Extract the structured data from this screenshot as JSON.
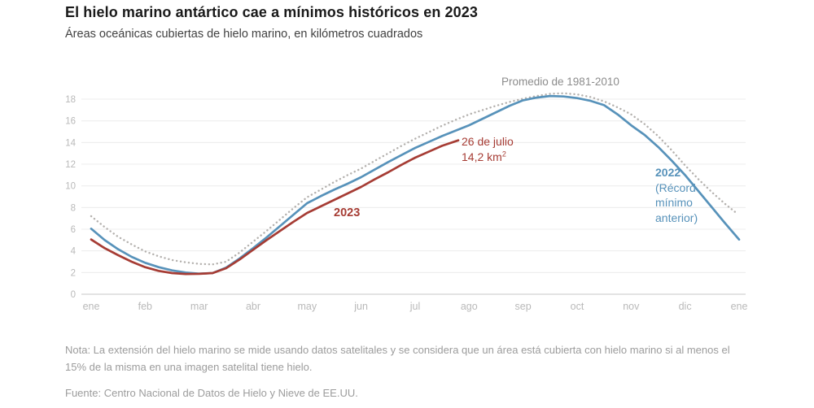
{
  "header": {
    "title": "El hielo marino antártico cae a mínimos históricos en 2023",
    "subtitle": "Áreas oceánicas cubiertas de hielo marino, en kilómetros cuadrados"
  },
  "chart_data": {
    "type": "line",
    "title": "El hielo marino antártico cae a mínimos históricos en 2023",
    "ylabel": "",
    "xlabel": "",
    "x_labels": [
      "ene",
      "feb",
      "mar",
      "abr",
      "may",
      "jun",
      "jul",
      "ago",
      "sep",
      "oct",
      "nov",
      "dic",
      "ene"
    ],
    "y_ticks": [
      0,
      2,
      4,
      6,
      8,
      10,
      12,
      14,
      16,
      18
    ],
    "ylim": [
      0,
      18.6
    ],
    "grid": "horizontal",
    "colors": {
      "average": "#b4b1ae",
      "y2022": "#5792ba",
      "y2023": "#a63c34",
      "gridline": "#ececec",
      "axis_line": "#c7c7c7",
      "tick_text": "#b9b9b9"
    },
    "series": [
      {
        "id": "promedio",
        "name": "Promedio de 1981-2010",
        "style": "dotted",
        "color": "#b4b1ae",
        "points": [
          [
            0,
            7.2
          ],
          [
            0.25,
            6.2
          ],
          [
            0.5,
            5.3
          ],
          [
            0.75,
            4.6
          ],
          [
            1,
            3.95
          ],
          [
            1.25,
            3.5
          ],
          [
            1.5,
            3.15
          ],
          [
            1.75,
            2.95
          ],
          [
            2,
            2.8
          ],
          [
            2.25,
            2.75
          ],
          [
            2.5,
            3.0
          ],
          [
            2.75,
            3.85
          ],
          [
            3,
            4.85
          ],
          [
            3.25,
            5.85
          ],
          [
            3.5,
            6.9
          ],
          [
            3.75,
            7.95
          ],
          [
            4,
            8.95
          ],
          [
            4.25,
            9.65
          ],
          [
            4.5,
            10.35
          ],
          [
            4.75,
            11.0
          ],
          [
            5,
            11.6
          ],
          [
            5.25,
            12.3
          ],
          [
            5.5,
            13.0
          ],
          [
            5.75,
            13.7
          ],
          [
            6,
            14.35
          ],
          [
            6.25,
            14.95
          ],
          [
            6.5,
            15.55
          ],
          [
            6.75,
            16.1
          ],
          [
            7,
            16.6
          ],
          [
            7.25,
            17.0
          ],
          [
            7.5,
            17.4
          ],
          [
            7.75,
            17.75
          ],
          [
            8,
            18.05
          ],
          [
            8.25,
            18.3
          ],
          [
            8.5,
            18.5
          ],
          [
            8.75,
            18.55
          ],
          [
            9,
            18.45
          ],
          [
            9.25,
            18.2
          ],
          [
            9.5,
            17.8
          ],
          [
            9.75,
            17.25
          ],
          [
            10,
            16.6
          ],
          [
            10.25,
            15.7
          ],
          [
            10.5,
            14.6
          ],
          [
            10.75,
            13.3
          ],
          [
            11,
            11.9
          ],
          [
            11.25,
            10.6
          ],
          [
            11.5,
            9.4
          ],
          [
            11.75,
            8.3
          ],
          [
            11.95,
            7.5
          ]
        ]
      },
      {
        "id": "y2022",
        "name": "2022 (Récord mínimo anterior)",
        "style": "solid",
        "color": "#5792ba",
        "points": [
          [
            0,
            6.05
          ],
          [
            0.25,
            5.0
          ],
          [
            0.5,
            4.15
          ],
          [
            0.75,
            3.45
          ],
          [
            1,
            2.9
          ],
          [
            1.25,
            2.5
          ],
          [
            1.5,
            2.2
          ],
          [
            1.75,
            2.0
          ],
          [
            2,
            1.9
          ],
          [
            2.25,
            1.95
          ],
          [
            2.5,
            2.45
          ],
          [
            2.75,
            3.3
          ],
          [
            3,
            4.25
          ],
          [
            3.25,
            5.25
          ],
          [
            3.5,
            6.3
          ],
          [
            3.75,
            7.35
          ],
          [
            4,
            8.4
          ],
          [
            4.25,
            9.05
          ],
          [
            4.5,
            9.65
          ],
          [
            4.75,
            10.2
          ],
          [
            5,
            10.8
          ],
          [
            5.25,
            11.5
          ],
          [
            5.5,
            12.2
          ],
          [
            5.75,
            12.85
          ],
          [
            6,
            13.5
          ],
          [
            6.25,
            14.05
          ],
          [
            6.5,
            14.6
          ],
          [
            6.75,
            15.1
          ],
          [
            7,
            15.6
          ],
          [
            7.25,
            16.2
          ],
          [
            7.5,
            16.8
          ],
          [
            7.75,
            17.4
          ],
          [
            8,
            17.9
          ],
          [
            8.25,
            18.15
          ],
          [
            8.5,
            18.3
          ],
          [
            8.75,
            18.25
          ],
          [
            9,
            18.1
          ],
          [
            9.25,
            17.85
          ],
          [
            9.5,
            17.45
          ],
          [
            9.75,
            16.6
          ],
          [
            10,
            15.6
          ],
          [
            10.25,
            14.7
          ],
          [
            10.5,
            13.6
          ],
          [
            10.75,
            12.35
          ],
          [
            11,
            11.0
          ],
          [
            11.25,
            9.5
          ],
          [
            11.5,
            8.0
          ],
          [
            11.75,
            6.5
          ],
          [
            12,
            5.05
          ]
        ]
      },
      {
        "id": "y2023",
        "name": "2023",
        "style": "solid",
        "color": "#a63c34",
        "points": [
          [
            0,
            5.05
          ],
          [
            0.25,
            4.25
          ],
          [
            0.5,
            3.6
          ],
          [
            0.75,
            3.0
          ],
          [
            1,
            2.5
          ],
          [
            1.25,
            2.15
          ],
          [
            1.5,
            1.95
          ],
          [
            1.75,
            1.87
          ],
          [
            2,
            1.88
          ],
          [
            2.25,
            1.95
          ],
          [
            2.5,
            2.4
          ],
          [
            2.75,
            3.2
          ],
          [
            3,
            4.1
          ],
          [
            3.25,
            5.0
          ],
          [
            3.5,
            5.85
          ],
          [
            3.75,
            6.7
          ],
          [
            4,
            7.5
          ],
          [
            4.25,
            8.1
          ],
          [
            4.5,
            8.7
          ],
          [
            4.75,
            9.3
          ],
          [
            5,
            9.9
          ],
          [
            5.25,
            10.6
          ],
          [
            5.5,
            11.25
          ],
          [
            5.75,
            11.95
          ],
          [
            6,
            12.6
          ],
          [
            6.25,
            13.15
          ],
          [
            6.5,
            13.7
          ],
          [
            6.8,
            14.2
          ]
        ]
      }
    ],
    "annotations": {
      "avg_label": {
        "text": "Promedio de 1981-2010",
        "color": "#8c8c8c"
      },
      "red_point": {
        "line1": "26 de julio",
        "line2_base": "14,2 km",
        "line2_sup": "2",
        "color": "#a63c34"
      },
      "red_series": {
        "text": "2023",
        "color": "#a63c34"
      },
      "blue_series": {
        "lines": [
          "2022",
          "(Récord",
          "mínimo",
          "anterior)"
        ],
        "color": "#5792ba"
      }
    }
  },
  "footer": {
    "note": "Nota: La extensión del hielo marino se mide usando datos satelitales y se considera que un área está cubierta con hielo marino si al menos el 15% de la misma en una imagen satelital tiene hielo.",
    "source": "Fuente: Centro Nacional de Datos de Hielo y Nieve de EE.UU."
  }
}
